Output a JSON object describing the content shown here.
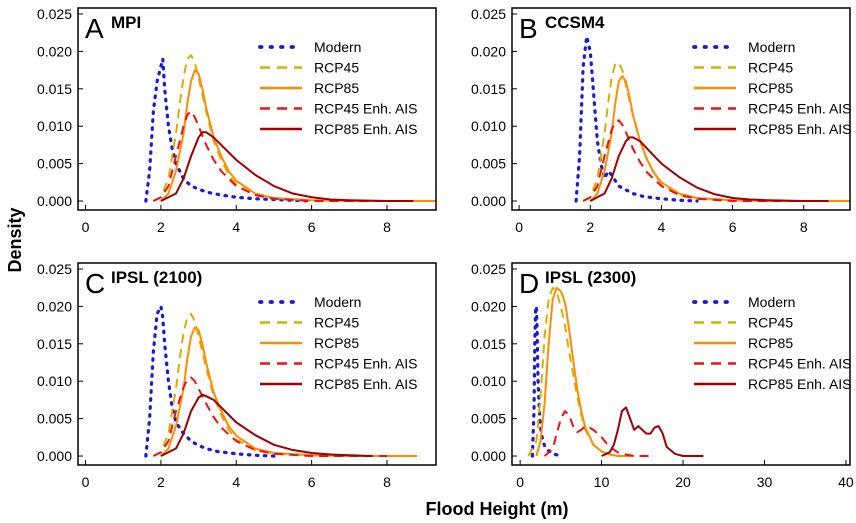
{
  "figure": {
    "xlabel": "Flood Height (m)",
    "ylabel": "Density"
  },
  "colors": {
    "Modern": "#1a1ad4",
    "RCP45": "#d4b000",
    "RCP85": "#ff8c00",
    "RCP45 Enh. AIS": "#ee1111",
    "RCP85 Enh. AIS": "#a00000"
  },
  "series_names": [
    "Modern",
    "RCP45",
    "RCP85",
    "RCP45 Enh. AIS",
    "RCP85 Enh. AIS"
  ],
  "chart_data": [
    {
      "type": "line",
      "panel": "A",
      "title": "MPI",
      "xlim": [
        -0.2,
        9.3
      ],
      "ylim": [
        -0.0012,
        0.0258
      ],
      "xticks": [
        0,
        2,
        4,
        6,
        8
      ],
      "yticks": [
        0.0,
        0.005,
        0.01,
        0.015,
        0.02,
        0.025
      ],
      "ytick_labels": [
        "0.000",
        "0.005",
        "0.010",
        "0.015",
        "0.020",
        "0.025"
      ],
      "series": [
        {
          "name": "Modern",
          "style": "dotted",
          "x": [
            1.6,
            1.7,
            1.8,
            1.9,
            2.0,
            2.05,
            2.1,
            2.2,
            2.3,
            2.4,
            2.5,
            2.6,
            2.7,
            2.8,
            2.9,
            3.0,
            3.2,
            3.4,
            3.6,
            4.0,
            4.5,
            5.0,
            6.0
          ],
          "y": [
            0.0,
            0.004,
            0.012,
            0.016,
            0.018,
            0.019,
            0.015,
            0.01,
            0.007,
            0.005,
            0.004,
            0.003,
            0.0025,
            0.002,
            0.0018,
            0.0016,
            0.0012,
            0.001,
            0.0008,
            0.0005,
            0.0003,
            0.0002,
            0.0
          ]
        },
        {
          "name": "RCP45",
          "style": "dashed",
          "x": [
            1.8,
            2.0,
            2.2,
            2.4,
            2.5,
            2.6,
            2.7,
            2.8,
            2.9,
            3.0,
            3.2,
            3.4,
            3.6,
            3.8,
            4.0,
            4.5,
            5.0,
            6.0,
            7.0,
            8.0,
            9.3
          ],
          "y": [
            0.0,
            0.0005,
            0.003,
            0.009,
            0.013,
            0.0165,
            0.019,
            0.0195,
            0.0185,
            0.0165,
            0.012,
            0.008,
            0.0055,
            0.0035,
            0.0022,
            0.0008,
            0.0003,
            0.0001,
            0.0,
            0.0,
            0.0
          ]
        },
        {
          "name": "RCP85",
          "style": "solid",
          "x": [
            2.0,
            2.2,
            2.4,
            2.6,
            2.7,
            2.8,
            2.9,
            3.0,
            3.1,
            3.2,
            3.4,
            3.6,
            3.8,
            4.0,
            4.5,
            5.0,
            6.0,
            7.0,
            8.0,
            9.3
          ],
          "y": [
            0.0,
            0.001,
            0.004,
            0.009,
            0.013,
            0.016,
            0.0175,
            0.017,
            0.015,
            0.0125,
            0.0085,
            0.006,
            0.004,
            0.0027,
            0.001,
            0.0004,
            0.0001,
            0.0,
            0.0,
            0.0
          ]
        },
        {
          "name": "RCP45 Enh. AIS",
          "style": "dashed",
          "x": [
            1.8,
            2.0,
            2.2,
            2.4,
            2.6,
            2.7,
            2.8,
            2.9,
            3.0,
            3.2,
            3.4,
            3.6,
            4.0,
            4.5,
            5.0,
            6.0,
            7.0,
            8.0
          ],
          "y": [
            0.0,
            0.0005,
            0.002,
            0.006,
            0.01,
            0.0115,
            0.012,
            0.0112,
            0.01,
            0.0075,
            0.0055,
            0.004,
            0.002,
            0.0008,
            0.0003,
            0.0,
            0.0,
            0.0
          ]
        },
        {
          "name": "RCP85 Enh. AIS",
          "style": "solid",
          "x": [
            2.0,
            2.4,
            2.6,
            2.8,
            3.0,
            3.1,
            3.2,
            3.4,
            3.6,
            3.8,
            4.0,
            4.5,
            5.0,
            5.5,
            6.0,
            6.5,
            7.0,
            8.0,
            8.7
          ],
          "y": [
            0.0,
            0.001,
            0.003,
            0.006,
            0.0085,
            0.0092,
            0.0092,
            0.0085,
            0.0075,
            0.0065,
            0.0055,
            0.0035,
            0.002,
            0.001,
            0.0005,
            0.0002,
            0.0001,
            0.0,
            0.0
          ]
        }
      ]
    },
    {
      "type": "line",
      "panel": "B",
      "title": "CCSM4",
      "xlim": [
        -0.2,
        9.3
      ],
      "ylim": [
        -0.0012,
        0.0258
      ],
      "xticks": [
        0,
        2,
        4,
        6,
        8
      ],
      "yticks": [
        0.0,
        0.005,
        0.01,
        0.015,
        0.02,
        0.025
      ],
      "ytick_labels": [
        "0.000",
        "0.005",
        "0.010",
        "0.015",
        "0.020",
        "0.025"
      ],
      "series": [
        {
          "name": "Modern",
          "style": "dotted",
          "x": [
            1.6,
            1.7,
            1.8,
            1.9,
            2.0,
            2.1,
            2.2,
            2.3,
            2.4,
            2.5,
            2.6,
            2.8,
            3.0,
            3.2,
            3.5,
            4.0,
            4.5,
            5.0
          ],
          "y": [
            0.0,
            0.006,
            0.018,
            0.022,
            0.02,
            0.014,
            0.008,
            0.005,
            0.003,
            0.004,
            0.0035,
            0.002,
            0.0015,
            0.001,
            0.0006,
            0.0003,
            0.0001,
            0.0
          ]
        },
        {
          "name": "RCP45",
          "style": "dashed",
          "x": [
            1.8,
            2.0,
            2.2,
            2.4,
            2.5,
            2.6,
            2.7,
            2.8,
            2.9,
            3.0,
            3.2,
            3.4,
            3.6,
            3.8,
            4.0,
            4.5,
            5.0,
            6.0,
            7.0,
            8.0,
            9.3
          ],
          "y": [
            0.0,
            0.0005,
            0.003,
            0.009,
            0.013,
            0.0165,
            0.0183,
            0.0185,
            0.0175,
            0.0155,
            0.0115,
            0.008,
            0.0055,
            0.0036,
            0.0023,
            0.0008,
            0.0003,
            0.0001,
            0.0,
            0.0,
            0.0
          ]
        },
        {
          "name": "RCP85",
          "style": "solid",
          "x": [
            2.0,
            2.2,
            2.4,
            2.6,
            2.7,
            2.8,
            2.9,
            3.0,
            3.1,
            3.2,
            3.4,
            3.6,
            3.8,
            4.0,
            4.5,
            5.0,
            6.0,
            7.0,
            8.0,
            9.3
          ],
          "y": [
            0.0,
            0.001,
            0.004,
            0.009,
            0.013,
            0.016,
            0.0167,
            0.016,
            0.014,
            0.0115,
            0.008,
            0.0055,
            0.0037,
            0.0025,
            0.001,
            0.0004,
            0.0001,
            0.0,
            0.0,
            0.0
          ]
        },
        {
          "name": "RCP45 Enh. AIS",
          "style": "dashed",
          "x": [
            1.8,
            2.0,
            2.2,
            2.4,
            2.6,
            2.7,
            2.8,
            2.9,
            3.0,
            3.2,
            3.4,
            3.6,
            4.0,
            4.5,
            5.0,
            6.0,
            7.0,
            8.0
          ],
          "y": [
            0.0,
            0.0005,
            0.002,
            0.006,
            0.0095,
            0.0105,
            0.0108,
            0.0102,
            0.0092,
            0.007,
            0.0052,
            0.0038,
            0.002,
            0.0008,
            0.0003,
            0.0,
            0.0,
            0.0
          ]
        },
        {
          "name": "RCP85 Enh. AIS",
          "style": "solid",
          "x": [
            2.0,
            2.4,
            2.6,
            2.8,
            3.0,
            3.1,
            3.2,
            3.4,
            3.6,
            3.8,
            4.0,
            4.5,
            5.0,
            5.5,
            6.0,
            6.5,
            7.0,
            8.0,
            8.7
          ],
          "y": [
            0.0,
            0.001,
            0.003,
            0.006,
            0.008,
            0.0085,
            0.0085,
            0.008,
            0.007,
            0.006,
            0.005,
            0.0032,
            0.0018,
            0.0009,
            0.0004,
            0.0002,
            0.0001,
            0.0,
            0.0
          ]
        }
      ]
    },
    {
      "type": "line",
      "panel": "C",
      "title": "IPSL (2100)",
      "xlim": [
        -0.2,
        9.3
      ],
      "ylim": [
        -0.0012,
        0.0258
      ],
      "xticks": [
        0,
        2,
        4,
        6,
        8
      ],
      "yticks": [
        0.0,
        0.005,
        0.01,
        0.015,
        0.02,
        0.025
      ],
      "ytick_labels": [
        "0.000",
        "0.005",
        "0.010",
        "0.015",
        "0.020",
        "0.025"
      ],
      "series": [
        {
          "name": "Modern",
          "style": "dotted",
          "x": [
            1.6,
            1.7,
            1.8,
            1.9,
            2.0,
            2.05,
            2.1,
            2.2,
            2.3,
            2.4,
            2.6,
            2.8,
            3.0,
            3.2,
            3.5,
            4.0,
            4.5,
            5.0
          ],
          "y": [
            0.0,
            0.005,
            0.014,
            0.019,
            0.02,
            0.0185,
            0.015,
            0.01,
            0.0065,
            0.0045,
            0.003,
            0.002,
            0.0014,
            0.001,
            0.0006,
            0.0003,
            0.0001,
            0.0
          ]
        },
        {
          "name": "RCP45",
          "style": "dashed",
          "x": [
            1.8,
            2.0,
            2.2,
            2.4,
            2.5,
            2.6,
            2.7,
            2.8,
            2.9,
            3.0,
            3.2,
            3.4,
            3.6,
            3.8,
            4.0,
            4.5,
            5.0,
            6.0,
            7.0,
            8.0,
            8.8
          ],
          "y": [
            0.0,
            0.0005,
            0.003,
            0.009,
            0.013,
            0.0165,
            0.0185,
            0.019,
            0.018,
            0.016,
            0.0118,
            0.008,
            0.0055,
            0.0035,
            0.0022,
            0.0008,
            0.0003,
            0.0001,
            0.0,
            0.0,
            0.0
          ]
        },
        {
          "name": "RCP85",
          "style": "solid",
          "x": [
            2.0,
            2.2,
            2.4,
            2.6,
            2.7,
            2.8,
            2.9,
            3.0,
            3.1,
            3.2,
            3.4,
            3.6,
            3.8,
            4.0,
            4.5,
            5.0,
            6.0,
            7.0,
            8.0,
            8.8
          ],
          "y": [
            0.0,
            0.001,
            0.004,
            0.009,
            0.013,
            0.016,
            0.0172,
            0.0168,
            0.015,
            0.0125,
            0.0085,
            0.006,
            0.004,
            0.0027,
            0.001,
            0.0004,
            0.0001,
            0.0,
            0.0,
            0.0
          ]
        },
        {
          "name": "RCP45 Enh. AIS",
          "style": "dashed",
          "x": [
            1.8,
            2.0,
            2.2,
            2.4,
            2.6,
            2.7,
            2.8,
            2.9,
            3.0,
            3.2,
            3.4,
            3.6,
            4.0,
            4.5,
            5.0,
            6.0,
            7.0,
            8.0
          ],
          "y": [
            0.0,
            0.0005,
            0.002,
            0.006,
            0.0092,
            0.0102,
            0.0105,
            0.01,
            0.009,
            0.007,
            0.0052,
            0.0038,
            0.002,
            0.0008,
            0.0003,
            0.0,
            0.0,
            0.0
          ]
        },
        {
          "name": "RCP85 Enh. AIS",
          "style": "solid",
          "x": [
            2.0,
            2.4,
            2.6,
            2.8,
            3.0,
            3.1,
            3.2,
            3.4,
            3.6,
            3.8,
            4.0,
            4.5,
            5.0,
            5.5,
            6.0,
            6.5,
            7.0,
            7.6
          ],
          "y": [
            0.0,
            0.001,
            0.003,
            0.006,
            0.0078,
            0.0082,
            0.008,
            0.0075,
            0.0065,
            0.0055,
            0.0045,
            0.0028,
            0.0015,
            0.0008,
            0.0004,
            0.0002,
            0.0001,
            0.0
          ]
        }
      ]
    },
    {
      "type": "line",
      "panel": "D",
      "title": "IPSL (2300)",
      "xlim": [
        -1,
        40.5
      ],
      "ylim": [
        -0.0012,
        0.0258
      ],
      "xticks": [
        0,
        10,
        20,
        30,
        40
      ],
      "yticks": [
        0.0,
        0.005,
        0.01,
        0.015,
        0.02,
        0.025
      ],
      "ytick_labels": [
        "0.000",
        "0.005",
        "0.010",
        "0.015",
        "0.020",
        "0.025"
      ],
      "series": [
        {
          "name": "Modern",
          "style": "dotted",
          "x": [
            1.5,
            1.7,
            1.8,
            1.9,
            2.0,
            2.1,
            2.2,
            2.4,
            2.6,
            2.8,
            3.0,
            3.5,
            4.0,
            5.0
          ],
          "y": [
            0.0,
            0.006,
            0.015,
            0.0195,
            0.02,
            0.016,
            0.01,
            0.005,
            0.003,
            0.002,
            0.0014,
            0.0007,
            0.0003,
            0.0
          ]
        },
        {
          "name": "RCP45",
          "style": "dashed",
          "x": [
            1.0,
            2.0,
            2.5,
            3.0,
            3.5,
            4.0,
            4.5,
            5.0,
            5.5,
            6.0,
            6.5,
            7.0,
            7.5,
            8.0,
            9.0,
            10.0,
            11.0,
            12.0,
            14.0
          ],
          "y": [
            0.0,
            0.002,
            0.008,
            0.016,
            0.021,
            0.0225,
            0.0218,
            0.02,
            0.0175,
            0.014,
            0.011,
            0.008,
            0.0055,
            0.0035,
            0.0015,
            0.0006,
            0.0002,
            0.0,
            0.0
          ]
        },
        {
          "name": "RCP85",
          "style": "solid",
          "x": [
            2.0,
            2.5,
            3.0,
            3.5,
            4.0,
            4.5,
            5.0,
            5.3,
            5.6,
            6.0,
            6.5,
            7.0,
            7.5,
            8.0,
            9.0,
            10.0,
            11.0,
            12.0,
            14.0
          ],
          "y": [
            0.0,
            0.002,
            0.007,
            0.015,
            0.021,
            0.0225,
            0.022,
            0.0212,
            0.02,
            0.017,
            0.013,
            0.009,
            0.006,
            0.0038,
            0.0015,
            0.0006,
            0.0002,
            0.0,
            0.0
          ]
        },
        {
          "name": "RCP45 Enh. AIS",
          "style": "dashed",
          "x": [
            3.0,
            4.0,
            4.5,
            5.0,
            5.5,
            6.0,
            6.5,
            7.0,
            7.5,
            8.0,
            8.5,
            9.0,
            9.5,
            10.0,
            11.0,
            12.0,
            13.0,
            14.0,
            16.0
          ],
          "y": [
            0.0,
            0.001,
            0.003,
            0.005,
            0.006,
            0.0055,
            0.004,
            0.0032,
            0.0035,
            0.004,
            0.0038,
            0.0035,
            0.003,
            0.0025,
            0.0012,
            0.0005,
            0.0002,
            0.0,
            0.0
          ]
        },
        {
          "name": "RCP85 Enh. AIS",
          "style": "solid",
          "x": [
            10.0,
            11.0,
            11.5,
            12.0,
            12.5,
            13.0,
            13.5,
            14.0,
            14.5,
            15.0,
            15.5,
            16.0,
            16.5,
            17.0,
            17.5,
            18.0,
            19.0,
            20.0,
            22.5
          ],
          "y": [
            0.0,
            0.0005,
            0.0015,
            0.0035,
            0.006,
            0.0065,
            0.005,
            0.0035,
            0.004,
            0.0035,
            0.003,
            0.003,
            0.0038,
            0.004,
            0.003,
            0.0012,
            0.0003,
            0.0,
            0.0
          ]
        }
      ]
    }
  ]
}
